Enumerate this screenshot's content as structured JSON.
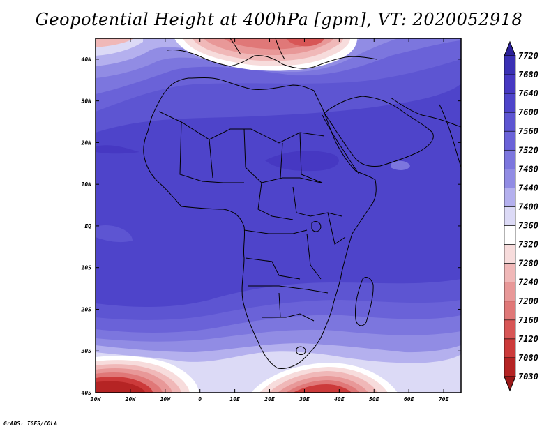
{
  "title": "Geopotential Height at 400hPa [gpm], VT: 2020052918",
  "credit": "GrADS: IGES/COLA",
  "map": {
    "lat_labels": [
      "40N",
      "30N",
      "20N",
      "10N",
      "EQ",
      "10S",
      "20S",
      "30S",
      "40S"
    ],
    "lon_labels": [
      "30W",
      "20W",
      "10W",
      "0",
      "10E",
      "20E",
      "30E",
      "40E",
      "50E",
      "60E",
      "70E"
    ],
    "lon_range": [
      -30,
      75
    ],
    "lat_range": [
      -40,
      45
    ]
  },
  "colorbar": {
    "levels": [
      "7720",
      "7680",
      "7640",
      "7600",
      "7560",
      "7520",
      "7480",
      "7440",
      "7400",
      "7360",
      "7320",
      "7280",
      "7240",
      "7200",
      "7160",
      "7120",
      "7080",
      "7030"
    ],
    "colors": [
      "#2b2099",
      "#3a30b4",
      "#4638c2",
      "#4e44ca",
      "#5d55d2",
      "#6a62d8",
      "#7c76de",
      "#918ce4",
      "#b4b0ee",
      "#dcdaf6",
      "#ffffff",
      "#f7dcdc",
      "#f0b8b8",
      "#e89898",
      "#e07878",
      "#d85656",
      "#cc3a3a",
      "#b52424",
      "#9b1818"
    ]
  }
}
